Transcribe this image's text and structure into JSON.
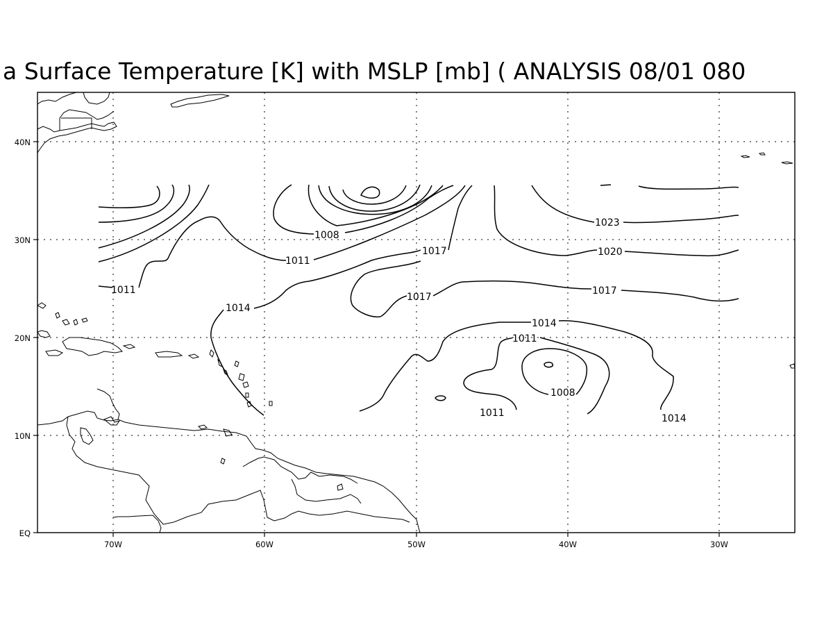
{
  "title": "a Surface Temperature [K] with MSLP [mb] ( ANALYSIS 08/01 080",
  "axes": {
    "x_ticks": [
      "70W",
      "60W",
      "50W",
      "40W",
      "30W"
    ],
    "y_ticks": [
      "EQ",
      "10N",
      "20N",
      "30N",
      "40N"
    ]
  },
  "contour_labels": [
    {
      "id": "l1008a",
      "text": "1008"
    },
    {
      "id": "l1011a",
      "text": "1011"
    },
    {
      "id": "l1011b",
      "text": "1011"
    },
    {
      "id": "l1014a",
      "text": "1014"
    },
    {
      "id": "l1017a",
      "text": "1017"
    },
    {
      "id": "l1017b",
      "text": "1017"
    },
    {
      "id": "l1023",
      "text": "1023"
    },
    {
      "id": "l1020",
      "text": "1020"
    },
    {
      "id": "l1017c",
      "text": "1017"
    },
    {
      "id": "l1014b",
      "text": "1014"
    },
    {
      "id": "l1011c",
      "text": "1011"
    },
    {
      "id": "l1008b",
      "text": "1008"
    },
    {
      "id": "l1011d",
      "text": "1011"
    },
    {
      "id": "l1014c",
      "text": "1014"
    }
  ],
  "map": {
    "lon_range": [
      "75W",
      "25W"
    ],
    "lat_range": [
      "EQ",
      "45N"
    ],
    "contour_interval_mb": 3,
    "grid": "dotted"
  }
}
